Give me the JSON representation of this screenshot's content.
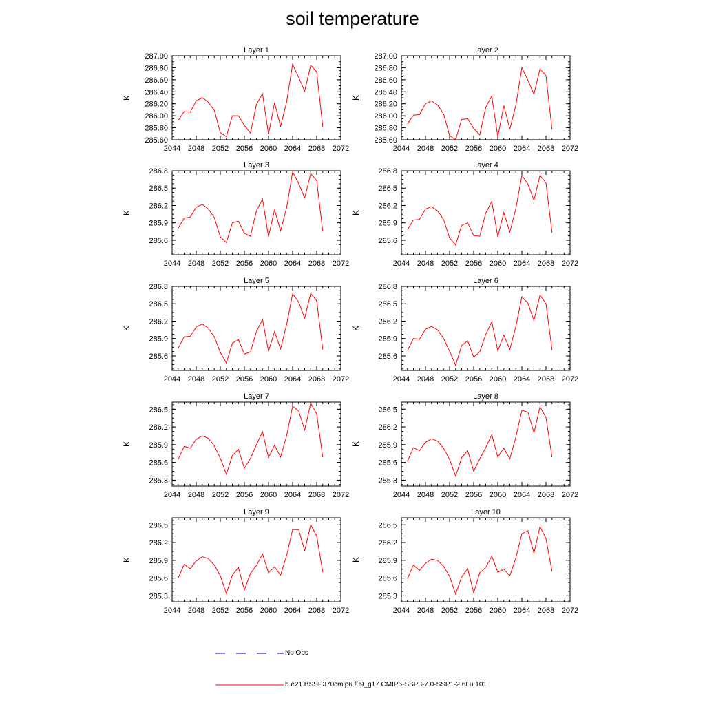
{
  "title": "soil temperature",
  "colors": {
    "series": "#ff0000",
    "obs": "#0000ff",
    "axis": "#000000"
  },
  "legend": {
    "obs_label": "No Obs",
    "model_label": "b.e21.BSSP370cmip6.f09_g17.CMIP6-SSP3-7.0-SSP1-2.6Lu.101"
  },
  "chart_data": [
    {
      "type": "line",
      "title": "Layer 1",
      "ylabel": "K",
      "xlim": [
        2044,
        2072
      ],
      "xticks": [
        "2044",
        "2048",
        "2052",
        "2056",
        "2060",
        "2064",
        "2068",
        "2072"
      ],
      "ylim": [
        285.6,
        287.0
      ],
      "yticks": [
        "285.60",
        "285.80",
        "286.00",
        "286.20",
        "286.40",
        "286.60",
        "286.80",
        "287.00"
      ],
      "series": [
        {
          "x": [
            2045,
            2046,
            2047,
            2048,
            2049,
            2050,
            2051,
            2052,
            2053,
            2054,
            2055,
            2056,
            2057,
            2058,
            2059,
            2060,
            2061,
            2062,
            2063,
            2064,
            2065,
            2066,
            2067,
            2068,
            2069
          ],
          "values": [
            285.92,
            286.07,
            286.06,
            286.25,
            286.3,
            286.23,
            286.09,
            285.72,
            285.65,
            286.0,
            286.0,
            285.84,
            285.71,
            286.19,
            286.37,
            285.69,
            286.22,
            285.82,
            286.23,
            286.86,
            286.64,
            286.41,
            286.84,
            286.73,
            285.82
          ]
        }
      ]
    },
    {
      "type": "line",
      "title": "Layer 2",
      "ylabel": "K",
      "xlim": [
        2044,
        2072
      ],
      "xticks": [
        "2044",
        "2048",
        "2052",
        "2056",
        "2060",
        "2064",
        "2068",
        "2072"
      ],
      "ylim": [
        285.6,
        287.0
      ],
      "yticks": [
        "285.60",
        "285.80",
        "286.00",
        "286.20",
        "286.40",
        "286.60",
        "286.80",
        "287.00"
      ],
      "series": [
        {
          "x": [
            2045,
            2046,
            2047,
            2048,
            2049,
            2050,
            2051,
            2052,
            2053,
            2054,
            2055,
            2056,
            2057,
            2058,
            2059,
            2060,
            2061,
            2062,
            2063,
            2064,
            2065,
            2066,
            2067,
            2068,
            2069
          ],
          "values": [
            285.86,
            286.01,
            286.02,
            286.2,
            286.25,
            286.18,
            286.03,
            285.67,
            285.6,
            285.94,
            285.95,
            285.79,
            285.68,
            286.14,
            286.33,
            285.65,
            286.17,
            285.78,
            286.18,
            286.8,
            286.59,
            286.36,
            286.78,
            286.67,
            285.77
          ]
        }
      ]
    },
    {
      "type": "line",
      "title": "Layer 3",
      "ylabel": "K",
      "xlim": [
        2044,
        2072
      ],
      "xticks": [
        "2044",
        "2048",
        "2052",
        "2056",
        "2060",
        "2064",
        "2068",
        "2072"
      ],
      "ylim": [
        285.35,
        286.8
      ],
      "yticks": [
        "285.6",
        "285.9",
        "286.2",
        "286.5",
        "286.8"
      ],
      "series": [
        {
          "x": [
            2045,
            2046,
            2047,
            2048,
            2049,
            2050,
            2051,
            2052,
            2053,
            2054,
            2055,
            2056,
            2057,
            2058,
            2059,
            2060,
            2061,
            2062,
            2063,
            2064,
            2065,
            2066,
            2067,
            2068,
            2069
          ],
          "values": [
            285.81,
            285.98,
            286.0,
            286.17,
            286.22,
            286.14,
            285.99,
            285.66,
            285.56,
            285.9,
            285.93,
            285.72,
            285.67,
            286.11,
            286.31,
            285.66,
            286.13,
            285.76,
            286.16,
            286.78,
            286.58,
            286.33,
            286.75,
            286.63,
            285.75
          ]
        }
      ]
    },
    {
      "type": "line",
      "title": "Layer 4",
      "ylabel": "K",
      "xlim": [
        2044,
        2072
      ],
      "xticks": [
        "2044",
        "2048",
        "2052",
        "2056",
        "2060",
        "2064",
        "2068",
        "2072"
      ],
      "ylim": [
        285.35,
        286.8
      ],
      "yticks": [
        "285.6",
        "285.9",
        "286.2",
        "286.5",
        "286.8"
      ],
      "series": [
        {
          "x": [
            2045,
            2046,
            2047,
            2048,
            2049,
            2050,
            2051,
            2052,
            2053,
            2054,
            2055,
            2056,
            2057,
            2058,
            2059,
            2060,
            2061,
            2062,
            2063,
            2064,
            2065,
            2066,
            2067,
            2068,
            2069
          ],
          "values": [
            285.78,
            285.95,
            285.96,
            286.14,
            286.18,
            286.11,
            285.96,
            285.64,
            285.52,
            285.86,
            285.9,
            285.68,
            285.67,
            286.07,
            286.27,
            285.66,
            286.08,
            285.74,
            286.15,
            286.72,
            286.57,
            286.29,
            286.72,
            286.59,
            285.73
          ]
        }
      ]
    },
    {
      "type": "line",
      "title": "Layer 5",
      "ylabel": "K",
      "xlim": [
        2044,
        2072
      ],
      "xticks": [
        "2044",
        "2048",
        "2052",
        "2056",
        "2060",
        "2064",
        "2068",
        "2072"
      ],
      "ylim": [
        285.35,
        286.8
      ],
      "yticks": [
        "285.6",
        "285.9",
        "286.2",
        "286.5",
        "286.8"
      ],
      "series": [
        {
          "x": [
            2045,
            2046,
            2047,
            2048,
            2049,
            2050,
            2051,
            2052,
            2053,
            2054,
            2055,
            2056,
            2057,
            2058,
            2059,
            2060,
            2061,
            2062,
            2063,
            2064,
            2065,
            2066,
            2067,
            2068,
            2069
          ],
          "values": [
            285.73,
            285.93,
            285.94,
            286.1,
            286.15,
            286.08,
            285.93,
            285.66,
            285.48,
            285.82,
            285.88,
            285.63,
            285.67,
            286.02,
            286.23,
            285.68,
            286.02,
            285.72,
            286.14,
            286.67,
            286.53,
            286.25,
            286.68,
            286.55,
            285.71
          ]
        }
      ]
    },
    {
      "type": "line",
      "title": "Layer 6",
      "ylabel": "K",
      "xlim": [
        2044,
        2072
      ],
      "xticks": [
        "2044",
        "2048",
        "2052",
        "2056",
        "2060",
        "2064",
        "2068",
        "2072"
      ],
      "ylim": [
        285.35,
        286.8
      ],
      "yticks": [
        "285.6",
        "285.9",
        "286.2",
        "286.5",
        "286.8"
      ],
      "series": [
        {
          "x": [
            2045,
            2046,
            2047,
            2048,
            2049,
            2050,
            2051,
            2052,
            2053,
            2054,
            2055,
            2056,
            2057,
            2058,
            2059,
            2060,
            2061,
            2062,
            2063,
            2064,
            2065,
            2066,
            2067,
            2068,
            2069
          ],
          "values": [
            285.69,
            285.9,
            285.89,
            286.06,
            286.11,
            286.05,
            285.9,
            285.68,
            285.44,
            285.78,
            285.86,
            285.58,
            285.67,
            285.97,
            286.19,
            285.69,
            285.96,
            285.71,
            286.11,
            286.62,
            286.51,
            286.21,
            286.65,
            286.5,
            285.7
          ]
        }
      ]
    },
    {
      "type": "line",
      "title": "Layer 7",
      "ylabel": "K",
      "xlim": [
        2044,
        2072
      ],
      "xticks": [
        "2044",
        "2048",
        "2052",
        "2056",
        "2060",
        "2064",
        "2068",
        "2072"
      ],
      "ylim": [
        285.2,
        286.62
      ],
      "yticks": [
        "285.3",
        "285.6",
        "285.9",
        "286.2",
        "286.5"
      ],
      "series": [
        {
          "x": [
            2045,
            2046,
            2047,
            2048,
            2049,
            2050,
            2051,
            2052,
            2053,
            2054,
            2055,
            2056,
            2057,
            2058,
            2059,
            2060,
            2061,
            2062,
            2063,
            2064,
            2065,
            2066,
            2067,
            2068,
            2069
          ],
          "values": [
            285.65,
            285.87,
            285.84,
            285.99,
            286.05,
            286.01,
            285.88,
            285.67,
            285.4,
            285.72,
            285.82,
            285.5,
            285.67,
            285.9,
            286.12,
            285.68,
            285.89,
            285.69,
            286.05,
            286.55,
            286.47,
            286.15,
            286.6,
            286.42,
            285.69
          ]
        }
      ]
    },
    {
      "type": "line",
      "title": "Layer 8",
      "ylabel": "K",
      "xlim": [
        2044,
        2072
      ],
      "xticks": [
        "2044",
        "2048",
        "2052",
        "2056",
        "2060",
        "2064",
        "2068",
        "2072"
      ],
      "ylim": [
        285.2,
        286.62
      ],
      "yticks": [
        "285.3",
        "285.6",
        "285.9",
        "286.2",
        "286.5"
      ],
      "series": [
        {
          "x": [
            2045,
            2046,
            2047,
            2048,
            2049,
            2050,
            2051,
            2052,
            2053,
            2054,
            2055,
            2056,
            2057,
            2058,
            2059,
            2060,
            2061,
            2062,
            2063,
            2064,
            2065,
            2066,
            2067,
            2068,
            2069
          ],
          "values": [
            285.62,
            285.85,
            285.8,
            285.94,
            286.0,
            285.96,
            285.84,
            285.65,
            285.37,
            285.68,
            285.8,
            285.45,
            285.66,
            285.85,
            286.07,
            285.69,
            285.84,
            285.66,
            286.03,
            286.48,
            286.45,
            286.1,
            286.54,
            286.36,
            285.69
          ]
        }
      ]
    },
    {
      "type": "line",
      "title": "Layer 9",
      "ylabel": "K",
      "xlim": [
        2044,
        2072
      ],
      "xticks": [
        "2044",
        "2048",
        "2052",
        "2056",
        "2060",
        "2064",
        "2068",
        "2072"
      ],
      "ylim": [
        285.2,
        286.62
      ],
      "yticks": [
        "285.3",
        "285.6",
        "285.9",
        "286.2",
        "286.5"
      ],
      "series": [
        {
          "x": [
            2045,
            2046,
            2047,
            2048,
            2049,
            2050,
            2051,
            2052,
            2053,
            2054,
            2055,
            2056,
            2057,
            2058,
            2059,
            2060,
            2061,
            2062,
            2063,
            2064,
            2065,
            2066,
            2067,
            2068,
            2069
          ],
          "values": [
            285.6,
            285.83,
            285.76,
            285.89,
            285.96,
            285.93,
            285.82,
            285.64,
            285.34,
            285.65,
            285.78,
            285.4,
            285.68,
            285.81,
            286.01,
            285.69,
            285.79,
            285.65,
            285.98,
            286.42,
            286.42,
            286.06,
            286.5,
            286.31,
            285.7
          ]
        }
      ]
    },
    {
      "type": "line",
      "title": "Layer 10",
      "ylabel": "K",
      "xlim": [
        2044,
        2072
      ],
      "xticks": [
        "2044",
        "2048",
        "2052",
        "2056",
        "2060",
        "2064",
        "2068",
        "2072"
      ],
      "ylim": [
        285.2,
        286.62
      ],
      "yticks": [
        "285.3",
        "285.6",
        "285.9",
        "286.2",
        "286.5"
      ],
      "series": [
        {
          "x": [
            2045,
            2046,
            2047,
            2048,
            2049,
            2050,
            2051,
            2052,
            2053,
            2054,
            2055,
            2056,
            2057,
            2058,
            2059,
            2060,
            2061,
            2062,
            2063,
            2064,
            2065,
            2066,
            2067,
            2068,
            2069
          ],
          "values": [
            285.59,
            285.82,
            285.73,
            285.85,
            285.92,
            285.9,
            285.8,
            285.63,
            285.33,
            285.62,
            285.76,
            285.35,
            285.69,
            285.78,
            285.97,
            285.7,
            285.75,
            285.64,
            285.94,
            286.35,
            286.4,
            286.02,
            286.47,
            286.27,
            285.71
          ]
        }
      ]
    }
  ]
}
